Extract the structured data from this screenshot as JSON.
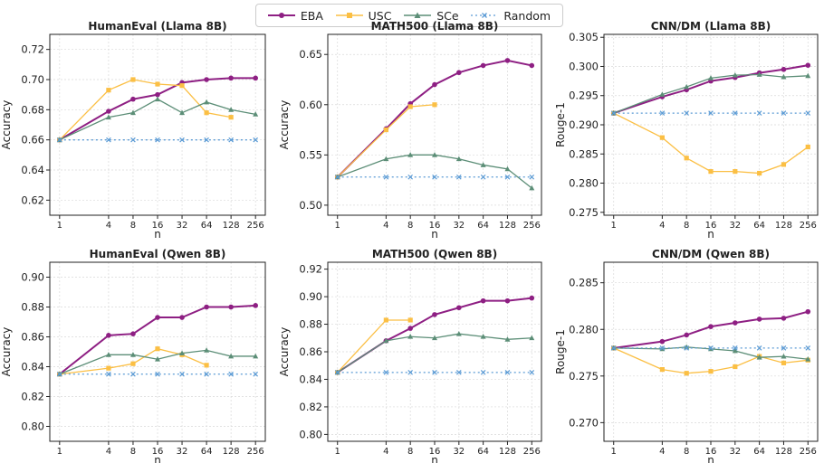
{
  "legend": {
    "items": [
      {
        "name": "EBA",
        "color": "#8e1f83",
        "marker": "circle",
        "dash": ""
      },
      {
        "name": "USC",
        "color": "#fbbf44",
        "marker": "square",
        "dash": ""
      },
      {
        "name": "SCe",
        "color": "#5c8e77",
        "marker": "triangle",
        "dash": ""
      },
      {
        "name": "Random",
        "color": "#5b9bd5",
        "marker": "x",
        "dash": "2,3"
      }
    ]
  },
  "chart_data": [
    {
      "type": "line",
      "title": "HumanEval (Llama 8B)",
      "xlabel": "n",
      "ylabel": "Accuracy",
      "x": [
        1,
        4,
        8,
        16,
        32,
        64,
        128,
        256
      ],
      "xscale": "log2",
      "ylim": [
        0.61,
        0.73
      ],
      "yticks": [
        "0.62",
        "0.64",
        "0.66",
        "0.68",
        "0.70",
        "0.72"
      ],
      "series": [
        {
          "name": "EBA",
          "values": [
            0.66,
            0.679,
            0.687,
            0.69,
            0.698,
            0.7,
            0.701,
            0.701
          ]
        },
        {
          "name": "USC",
          "values": [
            0.66,
            0.693,
            0.7,
            0.697,
            0.696,
            0.678,
            0.675,
            null
          ]
        },
        {
          "name": "SCe",
          "values": [
            0.66,
            0.675,
            0.678,
            0.687,
            0.678,
            0.685,
            0.68,
            0.677
          ]
        },
        {
          "name": "Random",
          "values": [
            0.66,
            0.66,
            0.66,
            0.66,
            0.66,
            0.66,
            0.66,
            0.66
          ]
        }
      ]
    },
    {
      "type": "line",
      "title": "MATH500 (Llama 8B)",
      "xlabel": "n",
      "ylabel": "Accuracy",
      "x": [
        1,
        4,
        8,
        16,
        32,
        64,
        128,
        256
      ],
      "xscale": "log2",
      "ylim": [
        0.49,
        0.67
      ],
      "yticks": [
        "0.50",
        "0.55",
        "0.60",
        "0.65"
      ],
      "series": [
        {
          "name": "EBA",
          "values": [
            0.528,
            0.576,
            0.601,
            0.62,
            0.632,
            0.639,
            0.644,
            0.639
          ]
        },
        {
          "name": "USC",
          "values": [
            0.528,
            0.575,
            0.598,
            0.6,
            null,
            null,
            null,
            null
          ]
        },
        {
          "name": "SCe",
          "values": [
            0.528,
            0.546,
            0.55,
            0.55,
            0.546,
            0.54,
            0.536,
            0.517
          ]
        },
        {
          "name": "Random",
          "values": [
            0.528,
            0.528,
            0.528,
            0.528,
            0.528,
            0.528,
            0.528,
            0.528
          ]
        }
      ]
    },
    {
      "type": "line",
      "title": "CNN/DM (Llama 8B)",
      "xlabel": "n",
      "ylabel": "Rouge-1",
      "x": [
        1,
        4,
        8,
        16,
        32,
        64,
        128,
        256
      ],
      "xscale": "log2",
      "ylim": [
        0.2745,
        0.3055
      ],
      "yticks": [
        "0.275",
        "0.280",
        "0.285",
        "0.290",
        "0.295",
        "0.300",
        "0.305"
      ],
      "series": [
        {
          "name": "EBA",
          "values": [
            0.292,
            0.2948,
            0.296,
            0.2975,
            0.2981,
            0.2989,
            0.2995,
            0.3002
          ]
        },
        {
          "name": "USC",
          "values": [
            0.292,
            0.2878,
            0.2843,
            0.282,
            0.282,
            0.2817,
            0.2832,
            0.2862
          ]
        },
        {
          "name": "SCe",
          "values": [
            0.292,
            0.2952,
            0.2965,
            0.298,
            0.2985,
            0.2986,
            0.2982,
            0.2984
          ]
        },
        {
          "name": "Random",
          "values": [
            0.292,
            0.292,
            0.292,
            0.292,
            0.292,
            0.292,
            0.292,
            0.292
          ]
        }
      ]
    },
    {
      "type": "line",
      "title": "HumanEval (Qwen 8B)",
      "xlabel": "n",
      "ylabel": "Accuracy",
      "x": [
        1,
        4,
        8,
        16,
        32,
        64,
        128,
        256
      ],
      "xscale": "log2",
      "ylim": [
        0.79,
        0.91
      ],
      "yticks": [
        "0.80",
        "0.82",
        "0.84",
        "0.86",
        "0.88",
        "0.90"
      ],
      "series": [
        {
          "name": "EBA",
          "values": [
            0.835,
            0.861,
            0.862,
            0.873,
            0.873,
            0.88,
            0.88,
            0.881
          ]
        },
        {
          "name": "USC",
          "values": [
            0.835,
            0.839,
            0.842,
            0.852,
            0.848,
            0.841,
            null,
            null
          ]
        },
        {
          "name": "SCe",
          "values": [
            0.835,
            0.848,
            0.848,
            0.845,
            0.849,
            0.851,
            0.847,
            0.847
          ]
        },
        {
          "name": "Random",
          "values": [
            0.835,
            0.835,
            0.835,
            0.835,
            0.835,
            0.835,
            0.835,
            0.835
          ]
        }
      ]
    },
    {
      "type": "line",
      "title": "MATH500 (Qwen 8B)",
      "xlabel": "n",
      "ylabel": "Accuracy",
      "x": [
        1,
        4,
        8,
        16,
        32,
        64,
        128,
        256
      ],
      "xscale": "log2",
      "ylim": [
        0.795,
        0.925
      ],
      "yticks": [
        "0.80",
        "0.82",
        "0.84",
        "0.86",
        "0.88",
        "0.90",
        "0.92"
      ],
      "series": [
        {
          "name": "EBA",
          "values": [
            0.845,
            0.868,
            0.877,
            0.887,
            0.892,
            0.897,
            0.897,
            0.899
          ]
        },
        {
          "name": "USC",
          "values": [
            0.845,
            0.883,
            0.883,
            null,
            null,
            null,
            null,
            null
          ]
        },
        {
          "name": "SCe",
          "values": [
            0.845,
            0.868,
            0.871,
            0.87,
            0.873,
            0.871,
            0.869,
            0.87
          ]
        },
        {
          "name": "Random",
          "values": [
            0.845,
            0.845,
            0.845,
            0.845,
            0.845,
            0.845,
            0.845,
            0.845
          ]
        }
      ]
    },
    {
      "type": "line",
      "title": "CNN/DM (Qwen 8B)",
      "xlabel": "n",
      "ylabel": "Rouge-1",
      "x": [
        1,
        4,
        8,
        16,
        32,
        64,
        128,
        256
      ],
      "xscale": "log2",
      "ylim": [
        0.268,
        0.2872
      ],
      "yticks": [
        "0.270",
        "0.275",
        "0.280",
        "0.285"
      ],
      "series": [
        {
          "name": "EBA",
          "values": [
            0.278,
            0.2787,
            0.2794,
            0.2803,
            0.2807,
            0.2811,
            0.2812,
            0.2819
          ]
        },
        {
          "name": "USC",
          "values": [
            0.278,
            0.2757,
            0.2753,
            0.2755,
            0.276,
            0.2771,
            0.2764,
            0.2767
          ]
        },
        {
          "name": "SCe",
          "values": [
            0.278,
            0.2779,
            0.2781,
            0.2779,
            0.2777,
            0.277,
            0.2771,
            0.2768
          ]
        },
        {
          "name": "Random",
          "values": [
            0.278,
            0.278,
            0.278,
            0.278,
            0.278,
            0.278,
            0.278,
            0.278
          ]
        }
      ]
    }
  ]
}
